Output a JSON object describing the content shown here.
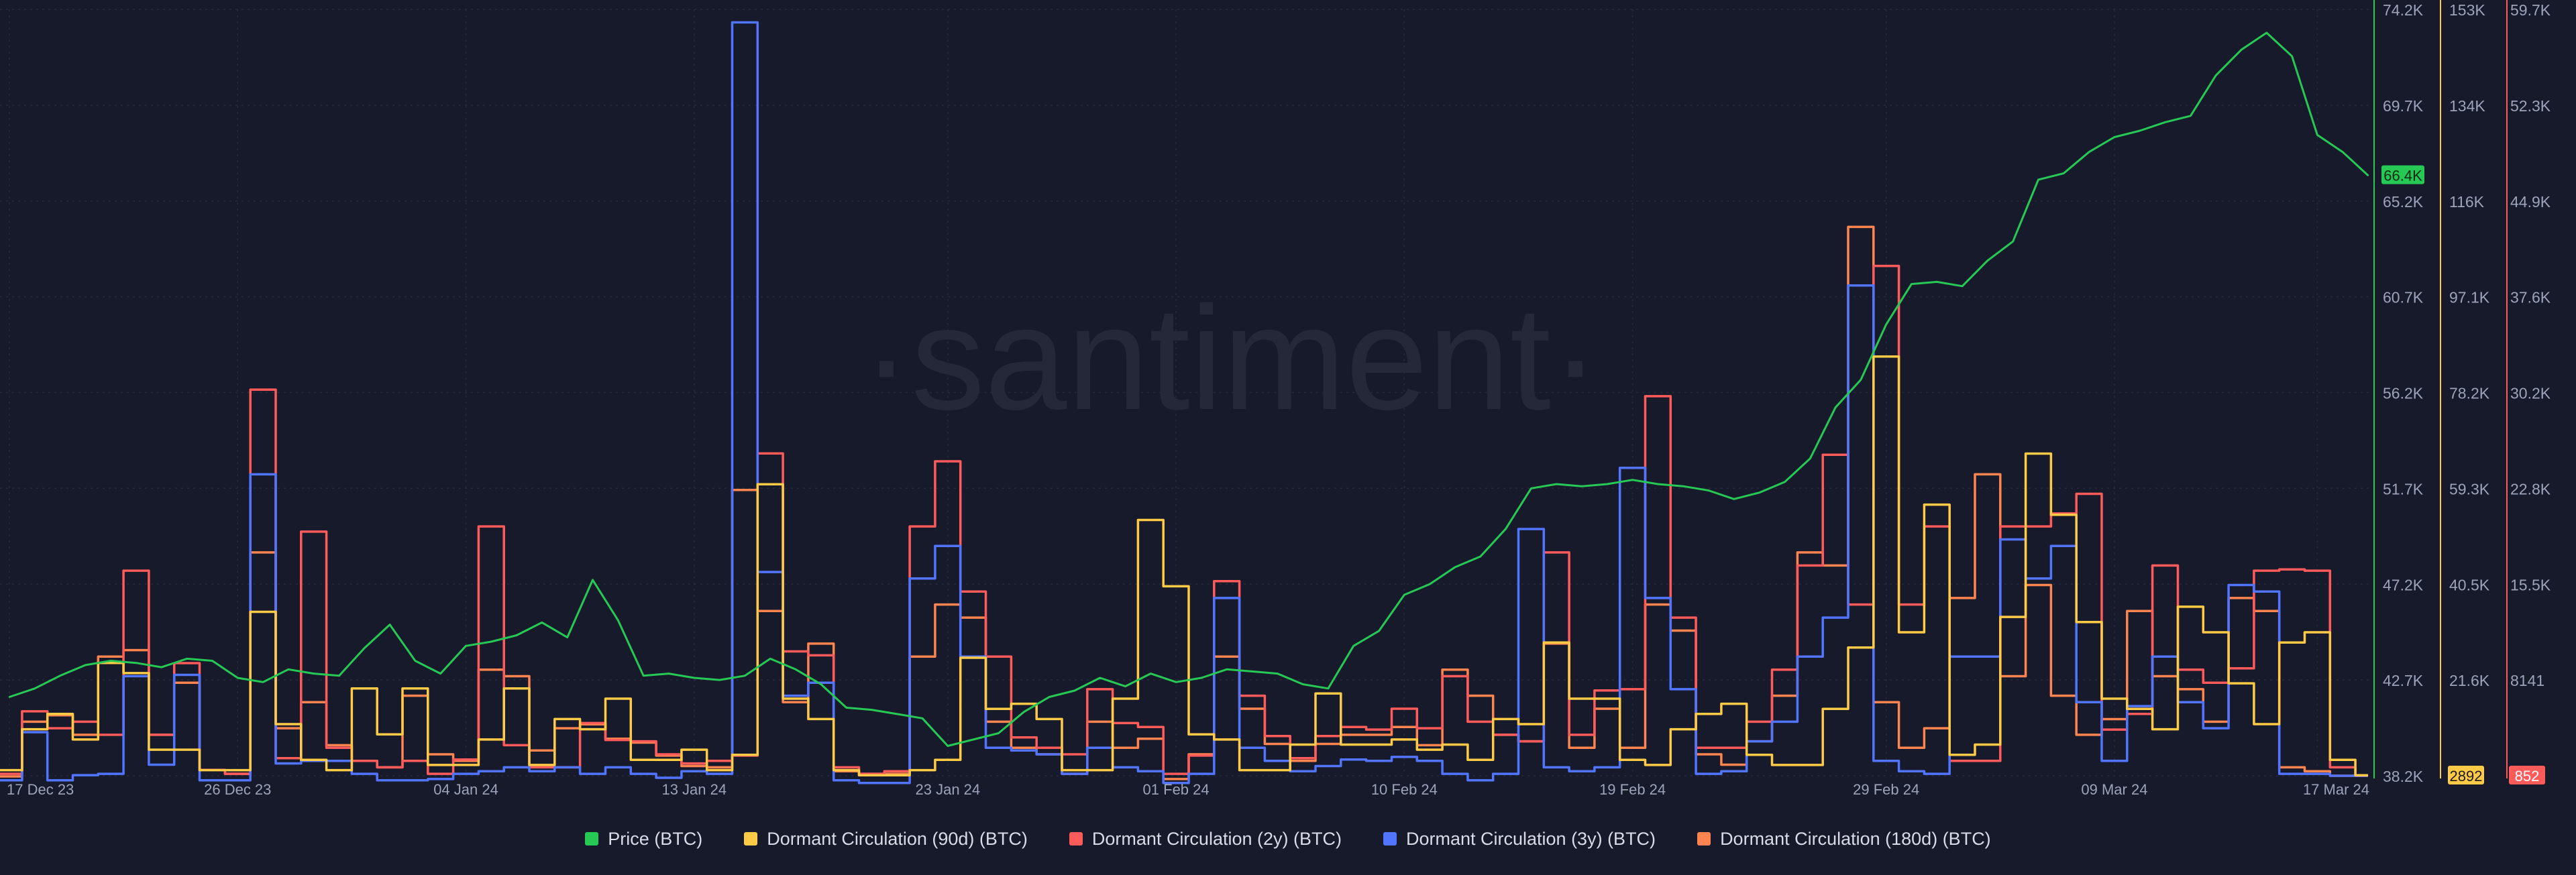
{
  "watermark": "·santiment·",
  "legend": [
    {
      "label": "Price (BTC)",
      "color": "#26c953"
    },
    {
      "label": "Dormant Circulation (90d) (BTC)",
      "color": "#ffcb47"
    },
    {
      "label": "Dormant Circulation (2y) (BTC)",
      "color": "#ff5b5b"
    },
    {
      "label": "Dormant Circulation (3y) (BTC)",
      "color": "#5275ff"
    },
    {
      "label": "Dormant Circulation (180d) (BTC)",
      "color": "#ff8450"
    }
  ],
  "chart_data": {
    "type": "line",
    "background": "#171a2b",
    "grid": true,
    "legend_position": "bottom",
    "x_ticks": [
      "17 Dec 23",
      "26 Dec 23",
      "04 Jan 24",
      "13 Jan 24",
      "23 Jan 24",
      "01 Feb 24",
      "10 Feb 24",
      "19 Feb 24",
      "29 Feb 24",
      "09 Mar 24",
      "17 Mar 24"
    ],
    "x_tick_index": [
      0,
      9,
      18,
      27,
      37,
      46,
      55,
      64,
      74,
      83,
      91
    ],
    "axes": [
      {
        "id": "price",
        "ticks": [
          "74.2K",
          "69.7K",
          "65.2K",
          "60.7K",
          "56.2K",
          "51.7K",
          "47.2K",
          "42.7K",
          "38.2K"
        ],
        "range": [
          38200,
          74200
        ],
        "color": "#26c953",
        "last_value_label": "66.4K",
        "last_value": 66400
      },
      {
        "id": "d90",
        "ticks": [
          "153K",
          "134K",
          "116K",
          "97.1K",
          "78.2K",
          "59.3K",
          "40.5K",
          "21.6K",
          "2892"
        ],
        "range": [
          2892,
          153000
        ],
        "color": "#ffcb47",
        "last_value_label": "2892",
        "last_value": 2892
      },
      {
        "id": "d2y",
        "ticks": [
          "59.7K",
          "52.3K",
          "44.9K",
          "37.6K",
          "30.2K",
          "22.8K",
          "15.5K",
          "8141",
          "852"
        ],
        "range": [
          852,
          59700
        ],
        "color": "#ff5b5b",
        "last_value_label": "852",
        "last_value": 852
      }
    ],
    "price_series": {
      "name": "Price (BTC)",
      "color": "#26c953",
      "values": [
        41900,
        42300,
        42900,
        43400,
        43600,
        43500,
        43300,
        43700,
        43600,
        42800,
        42600,
        43200,
        43000,
        42900,
        44200,
        45300,
        43600,
        43000,
        44300,
        44500,
        44800,
        45400,
        44700,
        47400,
        45500,
        42900,
        43000,
        42800,
        42700,
        42900,
        43700,
        43200,
        42500,
        41400,
        41300,
        41100,
        40900,
        39600,
        39900,
        40200,
        41200,
        41900,
        42200,
        42800,
        42400,
        43000,
        42600,
        42800,
        43200,
        43100,
        43000,
        42500,
        42300,
        44300,
        45000,
        46700,
        47200,
        48000,
        48500,
        49800,
        51700,
        51900,
        51800,
        51900,
        52100,
        51900,
        51800,
        51600,
        51200,
        51500,
        52000,
        53100,
        55500,
        56800,
        59400,
        61300,
        61400,
        61200,
        62400,
        63300,
        66200,
        66500,
        67500,
        68200,
        68500,
        68900,
        69200,
        71100,
        72300,
        73100,
        72000,
        68300,
        67500,
        66400
      ]
    },
    "dormant_series": [
      {
        "name": "Dormant Circulation (90d) (BTC)",
        "color": "#ffcb47",
        "axis": "d90",
        "values": [
          4000,
          12000,
          15000,
          10000,
          25000,
          23000,
          8000,
          8000,
          4000,
          4000,
          35000,
          13000,
          6000,
          4000,
          20000,
          11000,
          20000,
          5000,
          5000,
          10000,
          20000,
          5000,
          14000,
          12000,
          18000,
          6000,
          6000,
          8000,
          4000,
          7000,
          60000,
          18000,
          14000,
          4000,
          3000,
          3000,
          4000,
          6000,
          26000,
          16000,
          17000,
          14000,
          4000,
          4000,
          18000,
          53000,
          40000,
          11000,
          10000,
          4000,
          4000,
          9000,
          19000,
          9000,
          9000,
          10000,
          8000,
          9000,
          6000,
          14000,
          13000,
          29000,
          18000,
          18000,
          6000,
          5000,
          12000,
          15000,
          17000,
          7000,
          5000,
          5000,
          16000,
          28000,
          85000,
          31000,
          56000,
          7000,
          9000,
          34000,
          66000,
          54000,
          33000,
          18000,
          16000,
          12000,
          36000,
          31000,
          21000,
          13000,
          29000,
          31000,
          6000,
          3000
        ]
      },
      {
        "name": "Dormant Circulation (2y) (BTC)",
        "color": "#ff5b5b",
        "axis": "d2y",
        "values": [
          1000,
          5800,
          4500,
          5000,
          4000,
          16600,
          4000,
          9500,
          1300,
          1000,
          30500,
          2200,
          19600,
          3000,
          2000,
          1500,
          2000,
          1000,
          2100,
          20000,
          3200,
          1500,
          1500,
          4900,
          3600,
          3500,
          2500,
          1800,
          2000,
          2400,
          25600,
          10400,
          10100,
          1500,
          1000,
          1200,
          20000,
          25000,
          15000,
          10000,
          3800,
          3000,
          2500,
          7500,
          4900,
          4600,
          1000,
          2400,
          15800,
          7000,
          3900,
          2200,
          3900,
          4600,
          4400,
          6000,
          4500,
          8500,
          5000,
          4000,
          3500,
          18000,
          4000,
          7400,
          7500,
          30000,
          13000,
          3000,
          3000,
          5000,
          9000,
          17000,
          25500,
          14000,
          40000,
          14000,
          20000,
          2000,
          2000,
          20000,
          20000,
          21000,
          22500,
          4400,
          5600,
          17000,
          9000,
          8000,
          9100,
          16600,
          16700,
          16600,
          1500,
          852
        ]
      },
      {
        "name": "Dormant Circulation (3y) (BTC)",
        "color": "#5275ff",
        "axis": "d2y",
        "values": [
          500,
          4200,
          500,
          900,
          1000,
          8500,
          1700,
          8600,
          500,
          500,
          24000,
          1800,
          2000,
          2000,
          1000,
          500,
          500,
          600,
          1000,
          1200,
          1500,
          1200,
          1500,
          1000,
          1500,
          1000,
          700,
          1200,
          1000,
          58700,
          16500,
          7000,
          8000,
          500,
          300,
          300,
          16000,
          18500,
          10000,
          3000,
          2800,
          2500,
          1000,
          3000,
          1500,
          1200,
          300,
          1000,
          14500,
          3000,
          2000,
          1200,
          1600,
          2100,
          2000,
          2300,
          2000,
          1000,
          500,
          1000,
          19800,
          1500,
          1200,
          1500,
          24500,
          14500,
          7500,
          1000,
          1200,
          3500,
          5000,
          10000,
          13000,
          38500,
          2000,
          1200,
          1000,
          10000,
          10000,
          19000,
          16000,
          18500,
          6500,
          2000,
          6200,
          10000,
          6500,
          4500,
          15500,
          15000,
          1000,
          1000,
          852,
          852
        ]
      },
      {
        "name": "Dormant Circulation (180d) (BTC)",
        "color": "#ff8450",
        "axis": "d2y",
        "values": [
          800,
          5000,
          5500,
          4000,
          10000,
          10500,
          4000,
          8000,
          1300,
          1000,
          18000,
          4500,
          6500,
          3200,
          2000,
          1500,
          7000,
          2500,
          2000,
          9000,
          8500,
          2800,
          4500,
          4800,
          3700,
          3400,
          2400,
          1600,
          1500,
          22800,
          13500,
          6500,
          11000,
          1200,
          1000,
          1000,
          10000,
          14000,
          13000,
          5000,
          3000,
          2500,
          1000,
          5000,
          3000,
          3700,
          600,
          2500,
          10000,
          6000,
          3300,
          2000,
          3300,
          4000,
          4000,
          4600,
          3200,
          9000,
          7000,
          4000,
          3500,
          11000,
          3000,
          6000,
          3000,
          14000,
          12000,
          2500,
          1700,
          3500,
          7000,
          18000,
          17000,
          43000,
          6500,
          3000,
          4500,
          14500,
          24000,
          8500,
          15500,
          7000,
          4000,
          5200,
          13500,
          8500,
          7500,
          5000,
          14500,
          13500,
          1500,
          1200,
          852,
          852
        ]
      }
    ]
  }
}
